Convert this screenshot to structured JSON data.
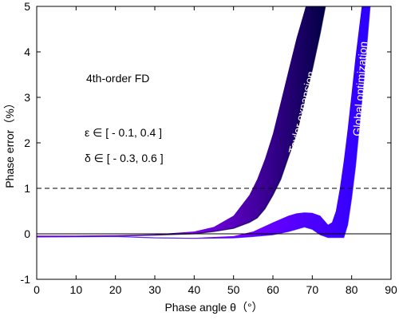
{
  "chart_data": {
    "type": "line",
    "xlabel": "Phase angle θ（°）",
    "ylabel": "Phase error（%）",
    "xlim": [
      0,
      90
    ],
    "ylim": [
      -1,
      5
    ],
    "xticks": [
      0,
      10,
      20,
      30,
      40,
      50,
      60,
      70,
      80,
      90
    ],
    "yticks": [
      -1,
      0,
      1,
      2,
      3,
      4,
      5
    ],
    "grid": false,
    "annotations": {
      "scheme": "4th-order FD",
      "epsilon_range": "ε ∈ [ - 0.1, 0.4 ]",
      "delta_range": "δ ∈ [ - 0.3, 0.6 ]",
      "taylor_label": "Taylor expansion",
      "global_label": "Global optimization"
    },
    "reference_lines": [
      {
        "y": 1,
        "style": "dashed"
      },
      {
        "y": 0,
        "style": "solid"
      }
    ],
    "series": [
      {
        "name": "Taylor expansion",
        "band": true,
        "upper": {
          "x": [
            0,
            10,
            20,
            30,
            40,
            45,
            50,
            54,
            56,
            58,
            60,
            62,
            64,
            66,
            68,
            70
          ],
          "y": [
            -0.04,
            -0.04,
            -0.03,
            -0.01,
            0.05,
            0.15,
            0.4,
            0.85,
            1.2,
            1.65,
            2.2,
            2.9,
            3.6,
            4.3,
            4.9,
            5.5
          ]
        },
        "lower": {
          "x": [
            0,
            10,
            20,
            30,
            40,
            45,
            50,
            54,
            56,
            58,
            60,
            62,
            64,
            66,
            68,
            70,
            72,
            74
          ],
          "y": [
            -0.06,
            -0.06,
            -0.05,
            -0.03,
            0.0,
            0.05,
            0.12,
            0.25,
            0.35,
            0.55,
            0.85,
            1.2,
            1.7,
            2.2,
            2.9,
            3.6,
            4.4,
            5.3
          ]
        },
        "color_start": "#cc00ff",
        "color_end": "#000040"
      },
      {
        "name": "Global optimization",
        "band": true,
        "upper": {
          "x": [
            0,
            20,
            30,
            40,
            50,
            55,
            60,
            64,
            66,
            68,
            70,
            72,
            73,
            74,
            75,
            76,
            77,
            78,
            79,
            80,
            81,
            82,
            83
          ],
          "y": [
            -0.06,
            -0.05,
            -0.08,
            -0.09,
            -0.05,
            0.05,
            0.25,
            0.4,
            0.45,
            0.47,
            0.46,
            0.4,
            0.3,
            0.2,
            0.25,
            0.5,
            1.0,
            1.6,
            2.3,
            3.1,
            3.9,
            4.6,
            5.3
          ]
        },
        "lower": {
          "x": [
            0,
            20,
            30,
            40,
            50,
            55,
            60,
            64,
            66,
            68,
            70,
            72,
            74,
            76,
            78,
            79,
            80,
            81,
            82,
            83,
            84,
            85
          ],
          "y": [
            -0.07,
            -0.06,
            -0.09,
            -0.1,
            -0.09,
            -0.06,
            -0.02,
            0.05,
            0.1,
            0.15,
            0.1,
            -0.02,
            -0.08,
            -0.08,
            -0.08,
            0.2,
            0.8,
            1.5,
            2.4,
            3.3,
            4.3,
            5.3
          ]
        },
        "color_start": "#cc00ff",
        "color_end": "#2a00ff"
      }
    ]
  }
}
